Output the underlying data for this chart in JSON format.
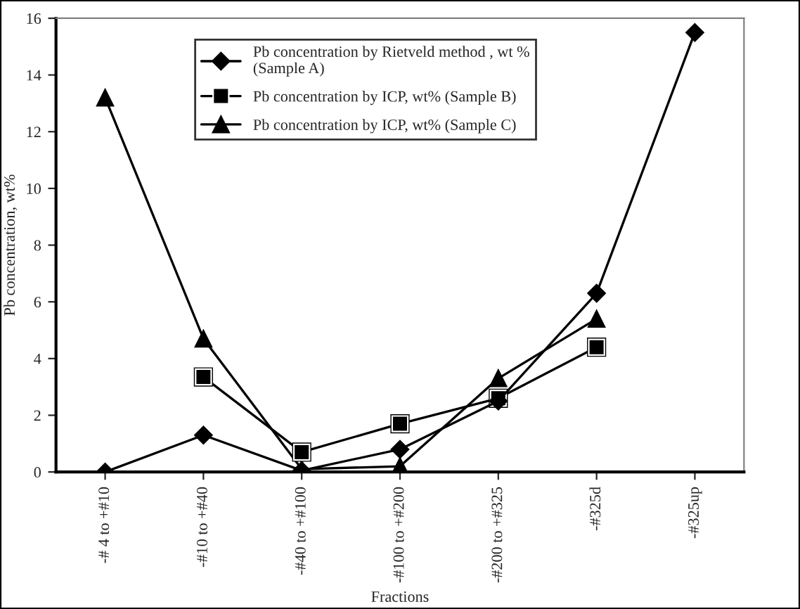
{
  "chart_data": {
    "type": "line",
    "xlabel": "Fractions",
    "ylabel": "Pb concentration, wt%",
    "categories": [
      "-# 4 to +#10",
      "-#10 to +#40",
      "-#40 to +#100",
      "-#100 to +#200",
      "-#200 to +#325",
      "-#325d",
      "-#325up"
    ],
    "series": [
      {
        "name": "Pb concentration by Rietveld method , wt %\n(Sample A)",
        "color": "#000000",
        "marker": "diamond",
        "values": [
          0,
          1.3,
          0.05,
          0.8,
          2.5,
          6.3,
          15.5
        ]
      },
      {
        "name": "Pb concentration by ICP, wt% (Sample B)",
        "color": "#000000",
        "marker": "square",
        "values": [
          null,
          3.35,
          0.7,
          1.7,
          2.6,
          4.4,
          null
        ]
      },
      {
        "name": "Pb concentration by ICP, wt% (Sample C)",
        "color": "#000000",
        "marker": "triangle",
        "values": [
          13.2,
          4.7,
          0.1,
          0.2,
          3.3,
          5.4,
          null
        ]
      }
    ],
    "ylim": [
      0,
      16
    ],
    "yticks": [
      0,
      2,
      4,
      6,
      8,
      10,
      12,
      14,
      16
    ],
    "grid": false,
    "legend": "top",
    "line_style": "solid"
  }
}
